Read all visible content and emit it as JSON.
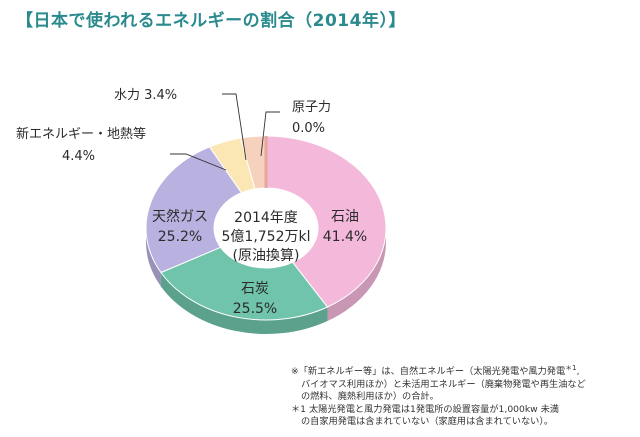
{
  "title": "【日本で使われるエネルギーの割合（2014年）】",
  "chart_data": {
    "type": "pie",
    "variant": "donut",
    "center_text": [
      "2014年度",
      "5億1,752万kl",
      "(原油換算)"
    ],
    "slices": [
      {
        "name": "石油",
        "value": 41.4,
        "value_label": "41.4%",
        "color": "#f3b8da"
      },
      {
        "name": "石炭",
        "value": 25.5,
        "value_label": "25.5%",
        "color": "#6fc4ab"
      },
      {
        "name": "天然ガス",
        "value": 25.2,
        "value_label": "25.2%",
        "color": "#b9b2e0"
      },
      {
        "name": "新エネルギー・地熱等",
        "value": 4.4,
        "value_label": "4.4%",
        "color": "#fbe7b3"
      },
      {
        "name": "水力",
        "value": 3.4,
        "value_label": "3.4%",
        "color": "#f6d2be"
      },
      {
        "name": "原子力",
        "value": 0.0,
        "value_label": "0.0%",
        "color": "#e8a69a"
      }
    ]
  },
  "labels": {
    "suiryoku": "水力 3.4%",
    "shin_line1": "新エネルギー・地熱等",
    "shin_line2": "4.4%",
    "genshi_line1": "原子力",
    "genshi_line2": "0.0%"
  },
  "notes": [
    "※「新エネルギー等」は、自然エネルギー（太陽光発電や風力発電",
    "バイオマス利用ほか）と未活用エネルギー（廃棄物発電や再生油など",
    "の燃料、廃熱利用ほか）の合計。",
    "＊1 太陽光発電と風力発電は1発電所の設置容量が1,000kw 未満",
    "の自家用発電は含まれていない（家庭用は含まれていない）。"
  ],
  "notes_superscript": "＊1"
}
